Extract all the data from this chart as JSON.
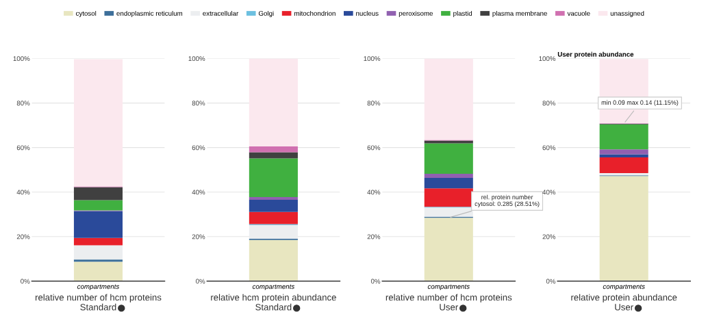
{
  "chart_data": [
    {
      "type": "bar",
      "stacked": true,
      "categories": [
        "compartments"
      ],
      "xlabel": "relative number of hcm proteins\nStandard",
      "ylim": [
        0,
        100
      ],
      "yticks": [
        {
          "value": 0,
          "label": "0%"
        },
        {
          "value": 20,
          "label": "20%"
        },
        {
          "value": 40,
          "label": "40%"
        },
        {
          "value": 60,
          "label": "60%"
        },
        {
          "value": 80,
          "label": "80%"
        },
        {
          "value": 100,
          "label": "100%"
        }
      ],
      "grid": "y",
      "legend": "top",
      "series": [
        {
          "name": "cytosol",
          "color": "#e8e6c0",
          "values": [
            8.7
          ]
        },
        {
          "name": "endoplasmic reticulum",
          "color": "#3d6f9a",
          "values": [
            1.0
          ]
        },
        {
          "name": "extracellular",
          "color": "#eceef0",
          "values": [
            6.4
          ]
        },
        {
          "name": "Golgi",
          "color": "#6cc0e0",
          "values": [
            null
          ]
        },
        {
          "name": "mitochondrion",
          "color": "#e8202a",
          "values": [
            3.3
          ]
        },
        {
          "name": "nucleus",
          "color": "#2a4a9a",
          "values": [
            12.1
          ]
        },
        {
          "name": "peroxisome",
          "color": "#9060b0",
          "values": [
            0.3
          ]
        },
        {
          "name": "plastid",
          "color": "#40b040",
          "values": [
            4.6
          ]
        },
        {
          "name": "plasma membrane",
          "color": "#404040",
          "values": [
            5.8
          ]
        },
        {
          "name": "vacuole",
          "color": "#d070b0",
          "values": [
            0.3
          ]
        },
        {
          "name": "unassigned",
          "color": "#fbe8ee",
          "values": [
            57.2
          ]
        }
      ]
    },
    {
      "type": "bar",
      "stacked": true,
      "categories": [
        "compartments"
      ],
      "xlabel": "relative hcm protein abundance\nStandard",
      "ylim": [
        0,
        100
      ],
      "yticks": [
        {
          "value": 0,
          "label": "0%"
        },
        {
          "value": 20,
          "label": "20%"
        },
        {
          "value": 40,
          "label": "40%"
        },
        {
          "value": 60,
          "label": "60%"
        },
        {
          "value": 80,
          "label": "80%"
        },
        {
          "value": 100,
          "label": "100%"
        }
      ],
      "grid": "y",
      "series": [
        {
          "color": "#e8e6c0",
          "values": [
            18.5
          ]
        },
        {
          "color": "#3d6f9a",
          "values": [
            0.6
          ]
        },
        {
          "color": "#eceef0",
          "values": [
            6.1
          ]
        },
        {
          "color": "#6cc0e0",
          "values": [
            0.4
          ]
        },
        {
          "color": "#e8202a",
          "values": [
            5.5
          ]
        },
        {
          "color": "#2a4a9a",
          "values": [
            5.4
          ]
        },
        {
          "color": "#9060b0",
          "values": [
            1.3
          ]
        },
        {
          "color": "#40b040",
          "values": [
            17.3
          ]
        },
        {
          "color": "#404040",
          "values": [
            2.8
          ]
        },
        {
          "color": "#d070b0",
          "values": [
            2.6
          ]
        },
        {
          "color": "#fbe8ee",
          "values": [
            39.5
          ]
        }
      ]
    },
    {
      "type": "bar",
      "stacked": true,
      "categories": [
        "compartments"
      ],
      "xlabel": "relative number of hcm proteins\nUser",
      "ylim": [
        0,
        100
      ],
      "yticks": [
        {
          "value": 0,
          "label": "0%"
        },
        {
          "value": 20,
          "label": "20%"
        },
        {
          "value": 40,
          "label": "40%"
        },
        {
          "value": 60,
          "label": "60%"
        },
        {
          "value": 80,
          "label": "80%"
        },
        {
          "value": 100,
          "label": "100%"
        }
      ],
      "grid": "y",
      "annotations": [
        {
          "text": "rel. protein number\ncytosol: 0.285 (28.51%)",
          "x": "compartments",
          "y": 28.5
        }
      ],
      "series": [
        {
          "color": "#e8e6c0",
          "values": [
            28.5
          ]
        },
        {
          "color": "#3d6f9a",
          "values": [
            0.4
          ]
        },
        {
          "color": "#eceef0",
          "values": [
            4.2
          ]
        },
        {
          "color": "#6cc0e0",
          "values": [
            0.3
          ]
        },
        {
          "color": "#e8202a",
          "values": [
            8.3
          ]
        },
        {
          "color": "#2a4a9a",
          "values": [
            4.7
          ]
        },
        {
          "color": "#9060b0",
          "values": [
            1.8
          ]
        },
        {
          "color": "#40b040",
          "values": [
            13.7
          ]
        },
        {
          "color": "#404040",
          "values": [
            1.2
          ]
        },
        {
          "color": "#d070b0",
          "values": [
            0.3
          ]
        },
        {
          "color": "#fbe8ee",
          "values": [
            36.6
          ]
        }
      ]
    },
    {
      "type": "bar",
      "stacked": true,
      "title": "User protein abundance",
      "categories": [
        "compartments"
      ],
      "xlabel": "relative protein abundance\nUser",
      "ylim": [
        0,
        100
      ],
      "yticks": [
        {
          "value": 0,
          "label": "0%"
        },
        {
          "value": 20,
          "label": "20%"
        },
        {
          "value": 40,
          "label": "40%"
        },
        {
          "value": 60,
          "label": "60%"
        },
        {
          "value": 80,
          "label": "80%"
        },
        {
          "value": 100,
          "label": "100%"
        }
      ],
      "grid": "y",
      "annotations": [
        {
          "text": "min 0.09 max 0.14 (11.15%)",
          "x": "compartments",
          "y": 70.8
        }
      ],
      "series": [
        {
          "color": "#e8e6c0",
          "values": [
            47.2
          ]
        },
        {
          "color": "#3d6f9a",
          "values": [
            0.3
          ]
        },
        {
          "color": "#eceef0",
          "values": [
            1.0
          ]
        },
        {
          "color": "#6cc0e0",
          "values": [
            null
          ]
        },
        {
          "color": "#e8202a",
          "values": [
            7.1
          ]
        },
        {
          "color": "#2a4a9a",
          "values": [
            1.4
          ]
        },
        {
          "color": "#9060b0",
          "values": [
            2.2
          ]
        },
        {
          "color": "#40b040",
          "values": [
            11.2
          ]
        },
        {
          "color": "#404040",
          "values": [
            0.3
          ]
        },
        {
          "color": "#d070b0",
          "values": [
            0.2
          ]
        },
        {
          "color": "#fbe8ee",
          "values": [
            28.9
          ]
        }
      ]
    }
  ]
}
